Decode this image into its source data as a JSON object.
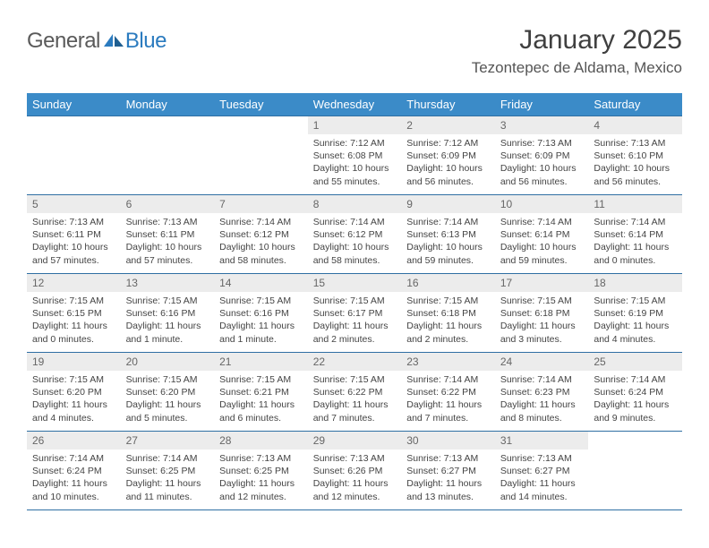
{
  "brand": {
    "part1": "General",
    "part2": "Blue"
  },
  "title": "January 2025",
  "location": "Tezontepec de Aldama, Mexico",
  "colors": {
    "header_bg": "#3b8bc8",
    "header_text": "#ffffff",
    "row_border": "#2f6fa3",
    "daynum_bg": "#ececec",
    "daynum_text": "#666666",
    "body_text": "#444444",
    "brand_gray": "#5a5a5a",
    "brand_blue": "#2b7bbf"
  },
  "day_names": [
    "Sunday",
    "Monday",
    "Tuesday",
    "Wednesday",
    "Thursday",
    "Friday",
    "Saturday"
  ],
  "weeks": [
    [
      null,
      null,
      null,
      {
        "n": "1",
        "sr": "Sunrise: 7:12 AM",
        "ss": "Sunset: 6:08 PM",
        "dl": "Daylight: 10 hours and 55 minutes."
      },
      {
        "n": "2",
        "sr": "Sunrise: 7:12 AM",
        "ss": "Sunset: 6:09 PM",
        "dl": "Daylight: 10 hours and 56 minutes."
      },
      {
        "n": "3",
        "sr": "Sunrise: 7:13 AM",
        "ss": "Sunset: 6:09 PM",
        "dl": "Daylight: 10 hours and 56 minutes."
      },
      {
        "n": "4",
        "sr": "Sunrise: 7:13 AM",
        "ss": "Sunset: 6:10 PM",
        "dl": "Daylight: 10 hours and 56 minutes."
      }
    ],
    [
      {
        "n": "5",
        "sr": "Sunrise: 7:13 AM",
        "ss": "Sunset: 6:11 PM",
        "dl": "Daylight: 10 hours and 57 minutes."
      },
      {
        "n": "6",
        "sr": "Sunrise: 7:13 AM",
        "ss": "Sunset: 6:11 PM",
        "dl": "Daylight: 10 hours and 57 minutes."
      },
      {
        "n": "7",
        "sr": "Sunrise: 7:14 AM",
        "ss": "Sunset: 6:12 PM",
        "dl": "Daylight: 10 hours and 58 minutes."
      },
      {
        "n": "8",
        "sr": "Sunrise: 7:14 AM",
        "ss": "Sunset: 6:12 PM",
        "dl": "Daylight: 10 hours and 58 minutes."
      },
      {
        "n": "9",
        "sr": "Sunrise: 7:14 AM",
        "ss": "Sunset: 6:13 PM",
        "dl": "Daylight: 10 hours and 59 minutes."
      },
      {
        "n": "10",
        "sr": "Sunrise: 7:14 AM",
        "ss": "Sunset: 6:14 PM",
        "dl": "Daylight: 10 hours and 59 minutes."
      },
      {
        "n": "11",
        "sr": "Sunrise: 7:14 AM",
        "ss": "Sunset: 6:14 PM",
        "dl": "Daylight: 11 hours and 0 minutes."
      }
    ],
    [
      {
        "n": "12",
        "sr": "Sunrise: 7:15 AM",
        "ss": "Sunset: 6:15 PM",
        "dl": "Daylight: 11 hours and 0 minutes."
      },
      {
        "n": "13",
        "sr": "Sunrise: 7:15 AM",
        "ss": "Sunset: 6:16 PM",
        "dl": "Daylight: 11 hours and 1 minute."
      },
      {
        "n": "14",
        "sr": "Sunrise: 7:15 AM",
        "ss": "Sunset: 6:16 PM",
        "dl": "Daylight: 11 hours and 1 minute."
      },
      {
        "n": "15",
        "sr": "Sunrise: 7:15 AM",
        "ss": "Sunset: 6:17 PM",
        "dl": "Daylight: 11 hours and 2 minutes."
      },
      {
        "n": "16",
        "sr": "Sunrise: 7:15 AM",
        "ss": "Sunset: 6:18 PM",
        "dl": "Daylight: 11 hours and 2 minutes."
      },
      {
        "n": "17",
        "sr": "Sunrise: 7:15 AM",
        "ss": "Sunset: 6:18 PM",
        "dl": "Daylight: 11 hours and 3 minutes."
      },
      {
        "n": "18",
        "sr": "Sunrise: 7:15 AM",
        "ss": "Sunset: 6:19 PM",
        "dl": "Daylight: 11 hours and 4 minutes."
      }
    ],
    [
      {
        "n": "19",
        "sr": "Sunrise: 7:15 AM",
        "ss": "Sunset: 6:20 PM",
        "dl": "Daylight: 11 hours and 4 minutes."
      },
      {
        "n": "20",
        "sr": "Sunrise: 7:15 AM",
        "ss": "Sunset: 6:20 PM",
        "dl": "Daylight: 11 hours and 5 minutes."
      },
      {
        "n": "21",
        "sr": "Sunrise: 7:15 AM",
        "ss": "Sunset: 6:21 PM",
        "dl": "Daylight: 11 hours and 6 minutes."
      },
      {
        "n": "22",
        "sr": "Sunrise: 7:15 AM",
        "ss": "Sunset: 6:22 PM",
        "dl": "Daylight: 11 hours and 7 minutes."
      },
      {
        "n": "23",
        "sr": "Sunrise: 7:14 AM",
        "ss": "Sunset: 6:22 PM",
        "dl": "Daylight: 11 hours and 7 minutes."
      },
      {
        "n": "24",
        "sr": "Sunrise: 7:14 AM",
        "ss": "Sunset: 6:23 PM",
        "dl": "Daylight: 11 hours and 8 minutes."
      },
      {
        "n": "25",
        "sr": "Sunrise: 7:14 AM",
        "ss": "Sunset: 6:24 PM",
        "dl": "Daylight: 11 hours and 9 minutes."
      }
    ],
    [
      {
        "n": "26",
        "sr": "Sunrise: 7:14 AM",
        "ss": "Sunset: 6:24 PM",
        "dl": "Daylight: 11 hours and 10 minutes."
      },
      {
        "n": "27",
        "sr": "Sunrise: 7:14 AM",
        "ss": "Sunset: 6:25 PM",
        "dl": "Daylight: 11 hours and 11 minutes."
      },
      {
        "n": "28",
        "sr": "Sunrise: 7:13 AM",
        "ss": "Sunset: 6:25 PM",
        "dl": "Daylight: 11 hours and 12 minutes."
      },
      {
        "n": "29",
        "sr": "Sunrise: 7:13 AM",
        "ss": "Sunset: 6:26 PM",
        "dl": "Daylight: 11 hours and 12 minutes."
      },
      {
        "n": "30",
        "sr": "Sunrise: 7:13 AM",
        "ss": "Sunset: 6:27 PM",
        "dl": "Daylight: 11 hours and 13 minutes."
      },
      {
        "n": "31",
        "sr": "Sunrise: 7:13 AM",
        "ss": "Sunset: 6:27 PM",
        "dl": "Daylight: 11 hours and 14 minutes."
      },
      null
    ]
  ]
}
